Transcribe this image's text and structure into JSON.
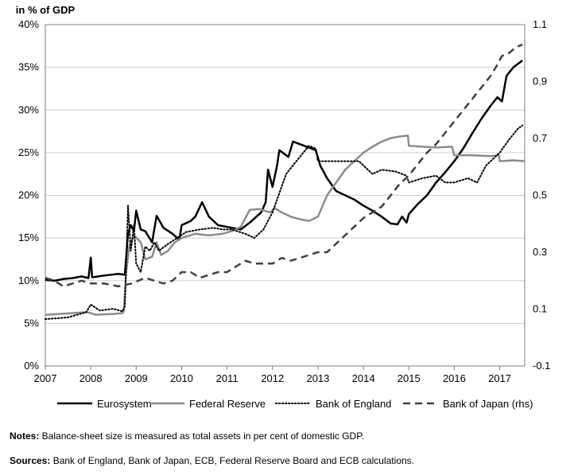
{
  "chart_data": {
    "type": "line",
    "title": "",
    "ylabel": "in % of GDP",
    "xlabel": "",
    "x_ticks": [
      "2007",
      "2008",
      "2009",
      "2010",
      "2011",
      "2012",
      "2013",
      "2014",
      "2015",
      "2016",
      "2017"
    ],
    "y_left_ticks": [
      "0%",
      "5%",
      "10%",
      "15%",
      "20%",
      "25%",
      "30%",
      "35%",
      "40%"
    ],
    "y_right_ticks": [
      "-0.1",
      "0.1",
      "0.3",
      "0.5",
      "0.7",
      "0.9",
      "1.1"
    ],
    "ylim_left": [
      0,
      40
    ],
    "ylim_right": [
      -0.1,
      1.1
    ],
    "xlim": [
      2007,
      2017.55
    ],
    "grid": "horizontal",
    "legend_position": "bottom",
    "series": [
      {
        "name": "Eurosystem",
        "axis": "left",
        "color": "#000000",
        "style": "solid",
        "points": [
          [
            2007.0,
            10.1
          ],
          [
            2007.2,
            10.0
          ],
          [
            2007.4,
            10.2
          ],
          [
            2007.6,
            10.3
          ],
          [
            2007.8,
            10.5
          ],
          [
            2007.95,
            10.3
          ],
          [
            2008.0,
            12.7
          ],
          [
            2008.03,
            10.4
          ],
          [
            2008.3,
            10.6
          ],
          [
            2008.6,
            10.8
          ],
          [
            2008.75,
            10.7
          ],
          [
            2008.82,
            15.5
          ],
          [
            2008.88,
            16.5
          ],
          [
            2008.95,
            15.8
          ],
          [
            2009.0,
            18.2
          ],
          [
            2009.1,
            16.0
          ],
          [
            2009.2,
            15.8
          ],
          [
            2009.35,
            14.5
          ],
          [
            2009.45,
            17.6
          ],
          [
            2009.6,
            16.2
          ],
          [
            2009.8,
            15.5
          ],
          [
            2009.95,
            14.8
          ],
          [
            2010.0,
            16.5
          ],
          [
            2010.2,
            17.0
          ],
          [
            2010.3,
            17.5
          ],
          [
            2010.45,
            19.2
          ],
          [
            2010.6,
            17.5
          ],
          [
            2010.8,
            16.5
          ],
          [
            2011.0,
            16.3
          ],
          [
            2011.3,
            16.0
          ],
          [
            2011.5,
            16.8
          ],
          [
            2011.75,
            18.0
          ],
          [
            2011.85,
            19.2
          ],
          [
            2011.9,
            23.0
          ],
          [
            2012.0,
            21.0
          ],
          [
            2012.1,
            23.5
          ],
          [
            2012.15,
            25.3
          ],
          [
            2012.35,
            24.5
          ],
          [
            2012.45,
            26.3
          ],
          [
            2012.7,
            25.8
          ],
          [
            2012.95,
            25.3
          ],
          [
            2013.05,
            23.5
          ],
          [
            2013.2,
            22.0
          ],
          [
            2013.4,
            20.5
          ],
          [
            2013.6,
            20.0
          ],
          [
            2013.8,
            19.5
          ],
          [
            2014.0,
            18.8
          ],
          [
            2014.2,
            18.2
          ],
          [
            2014.4,
            17.5
          ],
          [
            2014.6,
            16.7
          ],
          [
            2014.75,
            16.6
          ],
          [
            2014.85,
            17.5
          ],
          [
            2014.95,
            16.8
          ],
          [
            2015.0,
            17.8
          ],
          [
            2015.2,
            19.0
          ],
          [
            2015.4,
            20.0
          ],
          [
            2015.6,
            21.5
          ],
          [
            2015.8,
            22.7
          ],
          [
            2016.0,
            24.0
          ],
          [
            2016.2,
            25.5
          ],
          [
            2016.4,
            27.3
          ],
          [
            2016.6,
            29.0
          ],
          [
            2016.8,
            30.5
          ],
          [
            2016.95,
            31.5
          ],
          [
            2017.05,
            31.0
          ],
          [
            2017.15,
            34.0
          ],
          [
            2017.3,
            35.0
          ],
          [
            2017.5,
            35.8
          ]
        ]
      },
      {
        "name": "Federal Reserve",
        "axis": "left",
        "color": "#8c8c8c",
        "style": "solid",
        "points": [
          [
            2007.0,
            6.0
          ],
          [
            2007.3,
            6.1
          ],
          [
            2007.6,
            6.2
          ],
          [
            2007.9,
            6.3
          ],
          [
            2008.0,
            6.2
          ],
          [
            2008.1,
            6.0
          ],
          [
            2008.5,
            6.1
          ],
          [
            2008.7,
            6.2
          ],
          [
            2008.73,
            6.5
          ],
          [
            2008.78,
            11.0
          ],
          [
            2008.85,
            14.0
          ],
          [
            2008.95,
            15.3
          ],
          [
            2009.1,
            14.5
          ],
          [
            2009.2,
            12.5
          ],
          [
            2009.35,
            12.8
          ],
          [
            2009.45,
            14.5
          ],
          [
            2009.55,
            13.0
          ],
          [
            2009.7,
            13.5
          ],
          [
            2009.85,
            14.5
          ],
          [
            2010.0,
            15.0
          ],
          [
            2010.3,
            15.5
          ],
          [
            2010.6,
            15.3
          ],
          [
            2010.9,
            15.5
          ],
          [
            2011.1,
            15.8
          ],
          [
            2011.3,
            16.3
          ],
          [
            2011.5,
            18.3
          ],
          [
            2011.7,
            18.4
          ],
          [
            2011.95,
            18.0
          ],
          [
            2012.05,
            18.5
          ],
          [
            2012.2,
            18.0
          ],
          [
            2012.4,
            17.5
          ],
          [
            2012.6,
            17.2
          ],
          [
            2012.8,
            17.0
          ],
          [
            2013.0,
            17.5
          ],
          [
            2013.2,
            20.0
          ],
          [
            2013.4,
            21.5
          ],
          [
            2013.6,
            23.0
          ],
          [
            2013.8,
            24.0
          ],
          [
            2014.0,
            25.0
          ],
          [
            2014.2,
            25.7
          ],
          [
            2014.4,
            26.3
          ],
          [
            2014.6,
            26.7
          ],
          [
            2014.8,
            26.9
          ],
          [
            2014.98,
            27.0
          ],
          [
            2015.0,
            25.8
          ],
          [
            2015.3,
            25.7
          ],
          [
            2015.6,
            25.6
          ],
          [
            2015.95,
            25.7
          ],
          [
            2016.0,
            24.7
          ],
          [
            2016.4,
            24.7
          ],
          [
            2016.8,
            24.6
          ],
          [
            2016.98,
            24.7
          ],
          [
            2017.0,
            24.0
          ],
          [
            2017.3,
            24.1
          ],
          [
            2017.55,
            24.0
          ]
        ]
      },
      {
        "name": "Bank of England",
        "axis": "left",
        "color": "#000000",
        "style": "dotted",
        "points": [
          [
            2007.0,
            5.5
          ],
          [
            2007.3,
            5.6
          ],
          [
            2007.5,
            5.7
          ],
          [
            2007.7,
            6.0
          ],
          [
            2007.9,
            6.3
          ],
          [
            2008.0,
            7.2
          ],
          [
            2008.2,
            6.5
          ],
          [
            2008.5,
            6.7
          ],
          [
            2008.7,
            6.4
          ],
          [
            2008.75,
            7.0
          ],
          [
            2008.78,
            12.0
          ],
          [
            2008.82,
            18.8
          ],
          [
            2008.88,
            13.5
          ],
          [
            2008.95,
            16.5
          ],
          [
            2009.0,
            12.0
          ],
          [
            2009.1,
            11.0
          ],
          [
            2009.2,
            14.0
          ],
          [
            2009.3,
            13.5
          ],
          [
            2009.4,
            14.5
          ],
          [
            2009.5,
            13.5
          ],
          [
            2009.7,
            14.3
          ],
          [
            2009.9,
            15.0
          ],
          [
            2010.1,
            15.7
          ],
          [
            2010.4,
            16.0
          ],
          [
            2010.7,
            16.2
          ],
          [
            2010.9,
            16.0
          ],
          [
            2011.1,
            16.0
          ],
          [
            2011.4,
            15.5
          ],
          [
            2011.6,
            15.0
          ],
          [
            2011.8,
            16.0
          ],
          [
            2012.0,
            18.0
          ],
          [
            2012.3,
            22.5
          ],
          [
            2012.6,
            24.5
          ],
          [
            2012.8,
            25.8
          ],
          [
            2012.95,
            25.5
          ],
          [
            2013.0,
            24.0
          ],
          [
            2013.3,
            24.0
          ],
          [
            2013.6,
            24.0
          ],
          [
            2013.9,
            24.0
          ],
          [
            2014.0,
            23.5
          ],
          [
            2014.2,
            22.5
          ],
          [
            2014.4,
            23.0
          ],
          [
            2014.7,
            22.8
          ],
          [
            2014.95,
            22.3
          ],
          [
            2015.0,
            21.5
          ],
          [
            2015.3,
            22.0
          ],
          [
            2015.6,
            22.3
          ],
          [
            2015.8,
            21.5
          ],
          [
            2016.0,
            21.5
          ],
          [
            2016.3,
            22.0
          ],
          [
            2016.5,
            21.5
          ],
          [
            2016.7,
            23.5
          ],
          [
            2016.9,
            24.5
          ],
          [
            2017.0,
            25.0
          ],
          [
            2017.2,
            26.5
          ],
          [
            2017.4,
            27.8
          ],
          [
            2017.5,
            28.2
          ]
        ]
      },
      {
        "name": "Bank of Japan (rhs)",
        "axis": "right",
        "color": "#404040",
        "style": "dashed",
        "points": [
          [
            2007.0,
            0.21
          ],
          [
            2007.2,
            0.2
          ],
          [
            2007.4,
            0.18
          ],
          [
            2007.6,
            0.19
          ],
          [
            2007.8,
            0.2
          ],
          [
            2008.0,
            0.19
          ],
          [
            2008.3,
            0.19
          ],
          [
            2008.6,
            0.18
          ],
          [
            2008.9,
            0.19
          ],
          [
            2009.2,
            0.21
          ],
          [
            2009.4,
            0.2
          ],
          [
            2009.6,
            0.19
          ],
          [
            2009.8,
            0.2
          ],
          [
            2010.0,
            0.23
          ],
          [
            2010.2,
            0.23
          ],
          [
            2010.4,
            0.21
          ],
          [
            2010.6,
            0.22
          ],
          [
            2010.8,
            0.23
          ],
          [
            2011.0,
            0.23
          ],
          [
            2011.2,
            0.25
          ],
          [
            2011.4,
            0.27
          ],
          [
            2011.6,
            0.26
          ],
          [
            2011.8,
            0.26
          ],
          [
            2012.0,
            0.26
          ],
          [
            2012.2,
            0.28
          ],
          [
            2012.4,
            0.27
          ],
          [
            2012.6,
            0.28
          ],
          [
            2012.8,
            0.29
          ],
          [
            2013.0,
            0.3
          ],
          [
            2013.2,
            0.3
          ],
          [
            2013.4,
            0.33
          ],
          [
            2013.6,
            0.36
          ],
          [
            2013.8,
            0.39
          ],
          [
            2014.0,
            0.42
          ],
          [
            2014.2,
            0.44
          ],
          [
            2014.4,
            0.46
          ],
          [
            2014.6,
            0.5
          ],
          [
            2014.8,
            0.54
          ],
          [
            2015.0,
            0.57
          ],
          [
            2015.2,
            0.61
          ],
          [
            2015.4,
            0.65
          ],
          [
            2015.6,
            0.68
          ],
          [
            2015.8,
            0.72
          ],
          [
            2016.0,
            0.76
          ],
          [
            2016.2,
            0.8
          ],
          [
            2016.4,
            0.84
          ],
          [
            2016.6,
            0.88
          ],
          [
            2016.8,
            0.92
          ],
          [
            2016.95,
            0.96
          ],
          [
            2017.05,
            0.99
          ],
          [
            2017.2,
            1.0
          ],
          [
            2017.35,
            1.02
          ],
          [
            2017.5,
            1.03
          ]
        ]
      }
    ]
  },
  "notes": {
    "notes_label": "Notes:",
    "notes_text": " Balance-sheet size is measured as total assets in per cent of domestic GDP.",
    "sources_label": "Sources:",
    "sources_text": " Bank of England, Bank of Japan, ECB, Federal Reserve Board and ECB calculations."
  }
}
